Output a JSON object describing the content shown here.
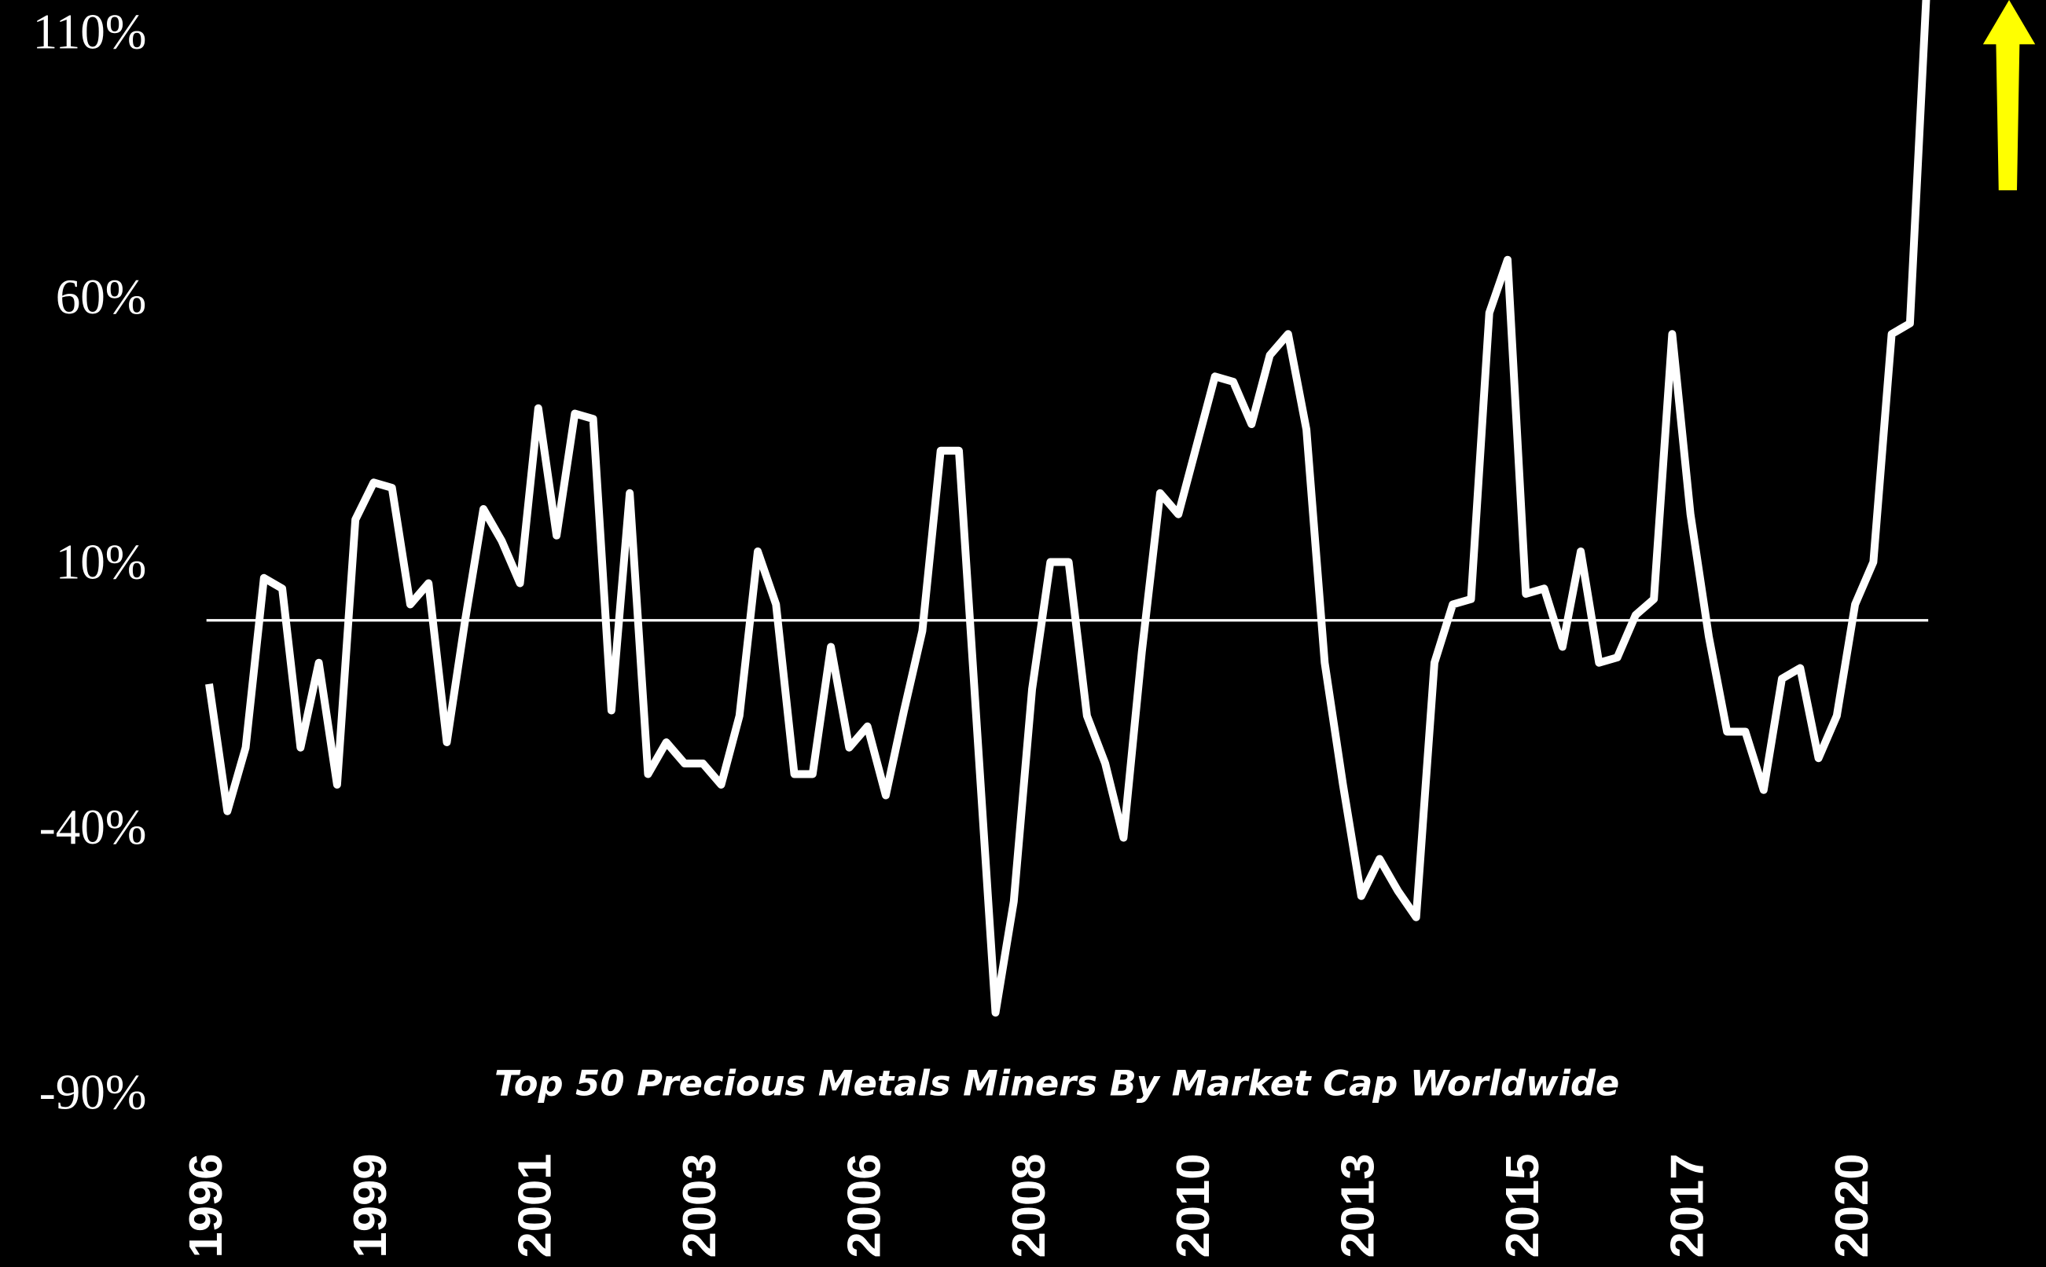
{
  "chart_data": {
    "type": "line",
    "title": "Top 50 Precious Metals Miners By Market Cap Worldwide",
    "categories": [
      "1996",
      null,
      null,
      null,
      null,
      null,
      null,
      null,
      null,
      "1999",
      null,
      null,
      null,
      null,
      null,
      null,
      null,
      null,
      "2001",
      null,
      null,
      null,
      null,
      null,
      null,
      null,
      null,
      "2003",
      null,
      null,
      null,
      null,
      null,
      null,
      null,
      null,
      "2006",
      null,
      null,
      null,
      null,
      null,
      null,
      null,
      null,
      "2008",
      null,
      null,
      null,
      null,
      null,
      null,
      null,
      null,
      "2010",
      null,
      null,
      null,
      null,
      null,
      null,
      null,
      null,
      "2013",
      null,
      null,
      null,
      null,
      null,
      null,
      null,
      null,
      "2015",
      null,
      null,
      null,
      null,
      null,
      null,
      null,
      null,
      "2017",
      null,
      null,
      null,
      null,
      null,
      null,
      null,
      null,
      "2020",
      null,
      null,
      null,
      null
    ],
    "series": [
      {
        "name": "Top 50 Precious Metals Miners",
        "color": "#ffffff",
        "values": [
          -12,
          -36,
          -24,
          8,
          6,
          -24,
          -8,
          -31,
          19,
          26,
          25,
          3,
          7,
          -23,
          0,
          21,
          15,
          7,
          40,
          16,
          39,
          38,
          -17,
          24,
          -29,
          -23,
          -27,
          -27,
          -31,
          -18,
          13,
          3,
          -29,
          -29,
          -5,
          -24,
          -20,
          -33,
          -17,
          -2,
          32,
          32,
          -21,
          -74,
          -53,
          -13,
          11,
          11,
          -18,
          -27,
          -41,
          -6,
          24,
          20,
          33,
          46,
          45,
          37,
          50,
          54,
          36,
          -8,
          -31,
          -52,
          -45,
          -51,
          -56,
          -8,
          3,
          4,
          58,
          68,
          5,
          6,
          -5,
          13,
          -8,
          -7,
          1,
          4,
          54,
          20,
          -3,
          -21,
          -21,
          -32,
          -11,
          -9,
          -26,
          -18,
          3,
          11,
          54,
          56,
          125
        ]
      }
    ],
    "ylim": [
      -90,
      117
    ],
    "yticks": [
      {
        "value": -90,
        "label": "-90%"
      },
      {
        "value": -40,
        "label": "-40%"
      },
      {
        "value": 10,
        "label": "10%"
      },
      {
        "value": 60,
        "label": "60%"
      },
      {
        "value": 110,
        "label": "110%"
      }
    ]
  }
}
